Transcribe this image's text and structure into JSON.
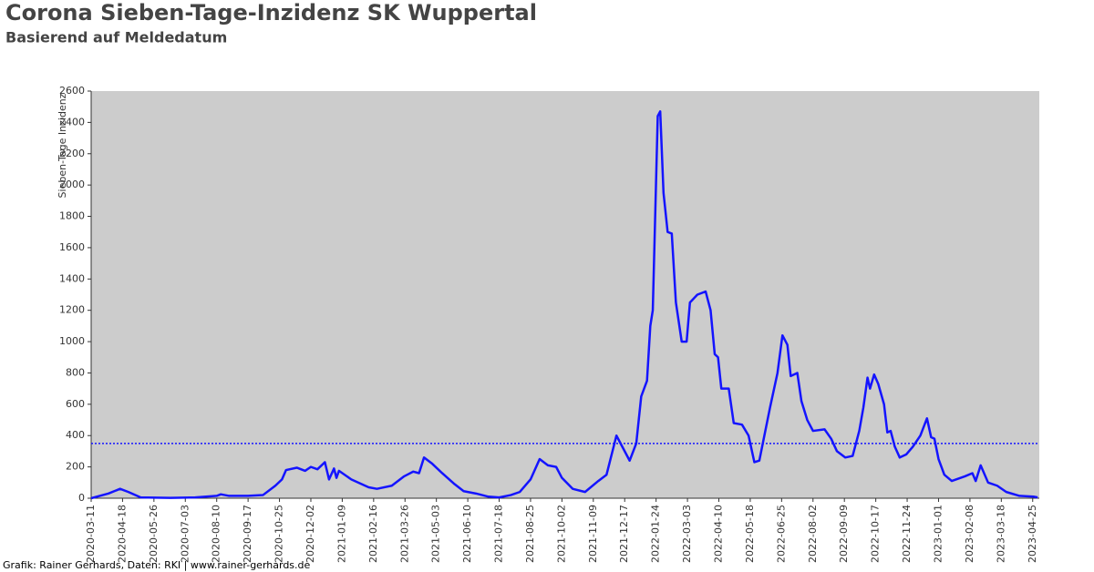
{
  "chart_data": {
    "type": "line",
    "title": "Corona Sieben-Tage-Inzidenz SK Wuppertal",
    "subtitle": "Basierend auf Meldedatum",
    "y_label": "Sieben-Tage Inzidenz",
    "footer": "Grafik: Rainer Gerhards, Daten: RKI | www.rainer-gerhards.de",
    "x": [
      "2020-03-11",
      "2020-04-01",
      "2020-04-15",
      "2020-04-25",
      "2020-05-10",
      "2020-06-15",
      "2020-07-15",
      "2020-08-10",
      "2020-08-15",
      "2020-08-25",
      "2020-09-17",
      "2020-10-05",
      "2020-10-20",
      "2020-10-28",
      "2020-11-02",
      "2020-11-15",
      "2020-11-25",
      "2020-12-02",
      "2020-12-10",
      "2020-12-19",
      "2020-12-24",
      "2020-12-30",
      "2021-01-02",
      "2021-01-05",
      "2021-01-20",
      "2021-02-10",
      "2021-02-20",
      "2021-03-10",
      "2021-03-25",
      "2021-04-05",
      "2021-04-12",
      "2021-04-18",
      "2021-04-28",
      "2021-05-10",
      "2021-05-25",
      "2021-06-05",
      "2021-06-20",
      "2021-07-05",
      "2021-07-18",
      "2021-08-01",
      "2021-08-12",
      "2021-08-25",
      "2021-09-05",
      "2021-09-15",
      "2021-09-25",
      "2021-10-02",
      "2021-10-15",
      "2021-10-30",
      "2021-11-15",
      "2021-11-25",
      "2021-12-07",
      "2021-12-23",
      "2021-12-31",
      "2022-01-06",
      "2022-01-13",
      "2022-01-17",
      "2022-01-20",
      "2022-01-26",
      "2022-01-29",
      "2022-02-02",
      "2022-02-07",
      "2022-02-12",
      "2022-02-17",
      "2022-02-24",
      "2022-03-02",
      "2022-03-06",
      "2022-03-15",
      "2022-03-25",
      "2022-03-31",
      "2022-04-05",
      "2022-04-09",
      "2022-04-13",
      "2022-04-22",
      "2022-04-28",
      "2022-05-08",
      "2022-05-16",
      "2022-05-23",
      "2022-05-29",
      "2022-06-11",
      "2022-06-20",
      "2022-06-26",
      "2022-07-02",
      "2022-07-06",
      "2022-07-14",
      "2022-07-19",
      "2022-07-26",
      "2022-08-02",
      "2022-08-16",
      "2022-08-24",
      "2022-08-31",
      "2022-09-10",
      "2022-09-19",
      "2022-09-27",
      "2022-10-02",
      "2022-10-07",
      "2022-10-10",
      "2022-10-15",
      "2022-10-20",
      "2022-10-27",
      "2022-10-31",
      "2022-11-04",
      "2022-11-09",
      "2022-11-15",
      "2022-11-23",
      "2022-12-01",
      "2022-12-10",
      "2022-12-18",
      "2022-12-23",
      "2022-12-27",
      "2023-01-01",
      "2023-01-08",
      "2023-01-17",
      "2023-02-02",
      "2023-02-11",
      "2023-02-15",
      "2023-02-21",
      "2023-03-02",
      "2023-03-13",
      "2023-03-24",
      "2023-04-09",
      "2023-04-26",
      "2023-05-01"
    ],
    "series": [
      {
        "name": "Sieben-Tage Inzidenz",
        "color": "#1414ff",
        "values": [
          0,
          30,
          60,
          40,
          5,
          2,
          5,
          15,
          25,
          15,
          15,
          20,
          80,
          120,
          180,
          195,
          175,
          200,
          185,
          230,
          120,
          190,
          130,
          175,
          120,
          70,
          60,
          80,
          140,
          170,
          160,
          260,
          220,
          160,
          90,
          45,
          30,
          10,
          5,
          20,
          40,
          120,
          250,
          210,
          200,
          130,
          60,
          40,
          110,
          150,
          400,
          240,
          350,
          650,
          750,
          1100,
          1200,
          2440,
          2470,
          1950,
          1700,
          1690,
          1250,
          1000,
          1000,
          1250,
          1300,
          1320,
          1200,
          920,
          900,
          700,
          700,
          480,
          470,
          400,
          230,
          240,
          580,
          800,
          1040,
          980,
          780,
          800,
          620,
          500,
          430,
          440,
          380,
          300,
          260,
          270,
          430,
          580,
          770,
          700,
          790,
          730,
          600,
          420,
          430,
          330,
          260,
          280,
          330,
          400,
          510,
          390,
          380,
          250,
          150,
          110,
          140,
          160,
          110,
          210,
          100,
          80,
          40,
          15,
          10,
          5
        ]
      }
    ],
    "reference_line": 350,
    "xlim": [
      "2020-03-11",
      "2023-05-03"
    ],
    "xticks": [
      "2020-03-11",
      "2020-04-18",
      "2020-05-26",
      "2020-07-03",
      "2020-08-10",
      "2020-09-17",
      "2020-10-25",
      "2020-12-02",
      "2021-01-09",
      "2021-02-16",
      "2021-03-26",
      "2021-05-03",
      "2021-06-10",
      "2021-07-18",
      "2021-08-25",
      "2021-10-02",
      "2021-11-09",
      "2021-12-17",
      "2022-01-24",
      "2022-03-03",
      "2022-04-10",
      "2022-05-18",
      "2022-06-25",
      "2022-08-02",
      "2022-09-09",
      "2022-10-17",
      "2022-11-24",
      "2023-01-01",
      "2023-02-08",
      "2023-03-18",
      "2023-04-25"
    ],
    "ylim": [
      0,
      2600
    ],
    "yticks": [
      0,
      200,
      400,
      600,
      800,
      1000,
      1200,
      1400,
      1600,
      1800,
      2000,
      2200,
      2400,
      2600
    ]
  }
}
